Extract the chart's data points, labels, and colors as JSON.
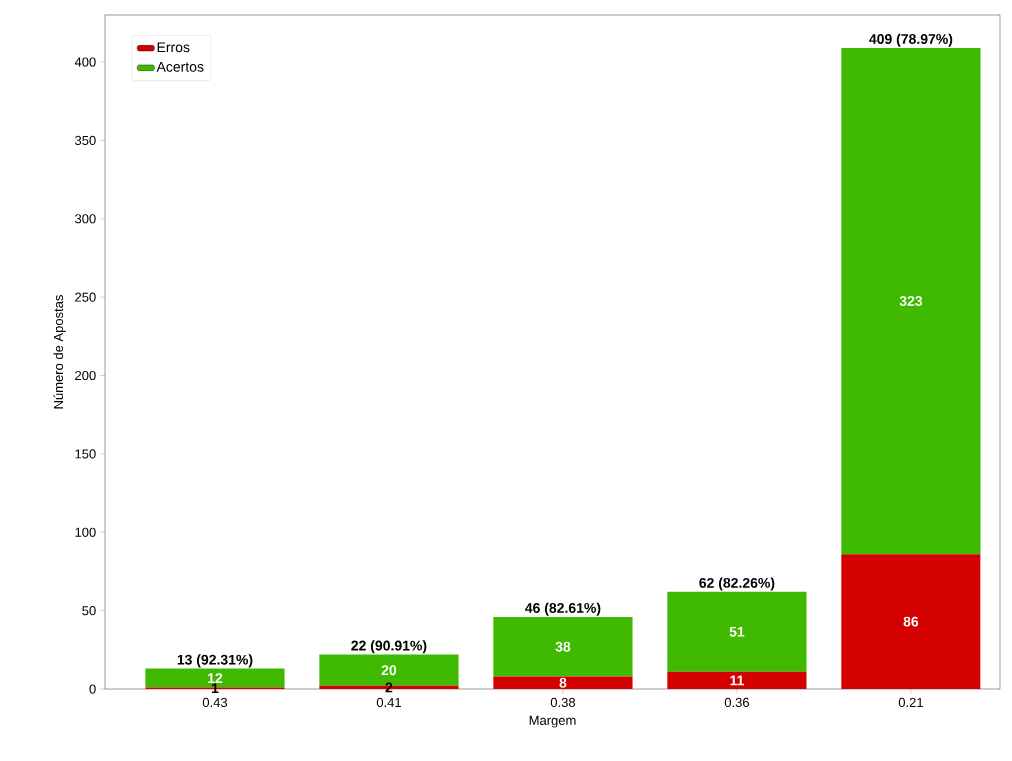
{
  "chart_data": {
    "type": "bar",
    "stacked": true,
    "xlabel": "Margem",
    "ylabel": "Número de Apostas",
    "categories": [
      "0.43",
      "0.41",
      "0.38",
      "0.36",
      "0.21"
    ],
    "series": [
      {
        "name": "Erros",
        "color": "#d40000",
        "values": [
          1,
          2,
          8,
          11,
          86
        ]
      },
      {
        "name": "Acertos",
        "color": "#3fba00",
        "values": [
          12,
          20,
          38,
          51,
          323
        ]
      }
    ],
    "totals": [
      "13 (92.31%)",
      "22 (90.91%)",
      "46 (82.61%)",
      "62 (82.26%)",
      "409 (78.97%)"
    ],
    "data_labels": true,
    "legend": "top left",
    "ylim": [
      0,
      430
    ],
    "yticks": [
      0,
      50,
      100,
      150,
      200,
      250,
      300,
      350,
      400
    ]
  }
}
